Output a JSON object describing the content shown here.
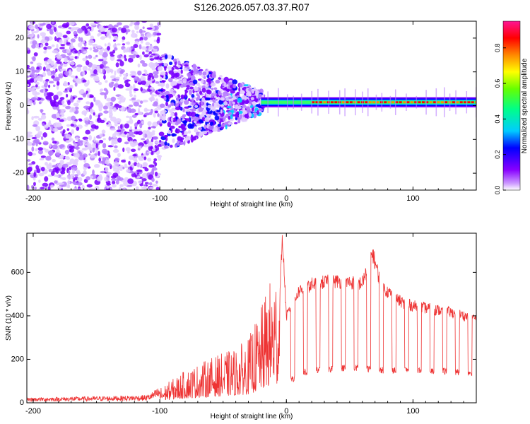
{
  "chart_data": [
    {
      "type": "heatmap",
      "title": "S126.2026.057.03.37.R07",
      "xlabel": "Height of straight line (km)",
      "ylabel": "Frequency (Hz)",
      "xlim": [
        -205,
        150
      ],
      "ylim": [
        -25,
        25
      ],
      "x_ticks": [
        -200,
        -100,
        0,
        100
      ],
      "x_tick_labels": [
        "-200",
        "-100",
        "0",
        "100"
      ],
      "y_ticks": [
        -20,
        -10,
        0,
        10,
        20
      ],
      "y_tick_labels": [
        "-20",
        "-10",
        "0",
        "10",
        "20"
      ],
      "colorbar": {
        "label": "Normalized spectral amplitude",
        "range": [
          0,
          0.95
        ],
        "ticks": [
          0.0,
          0.2,
          0.4,
          0.6,
          0.8
        ],
        "tick_labels": [
          "0.0",
          "0.2",
          "0.4",
          "0.6",
          "0.8"
        ],
        "colormap": [
          "#ffffff",
          "#cc99ff",
          "#8800ff",
          "#0000ff",
          "#00ccff",
          "#00ff88",
          "#66ff00",
          "#ffff00",
          "#ff8800",
          "#ff0000",
          "#ff1493"
        ]
      },
      "features": [
        {
          "name": "scattered noise",
          "x_range": [
            -205,
            -100
          ],
          "freq_range": [
            -25,
            25
          ],
          "amplitude": 0.1
        },
        {
          "name": "converging region",
          "x_range": [
            -100,
            -20
          ],
          "freq_range": [
            -10,
            12
          ],
          "amplitude": 0.2
        },
        {
          "name": "carrier line",
          "x_range": [
            -20,
            150
          ],
          "freq_center": 1,
          "amplitude": 0.85
        }
      ]
    },
    {
      "type": "line",
      "title": "",
      "xlabel": "Height of straight line (km)",
      "ylabel": "SNR (10 * v/v)",
      "xlim": [
        -205,
        150
      ],
      "ylim": [
        0,
        780
      ],
      "x_ticks": [
        -200,
        -100,
        0,
        100
      ],
      "x_tick_labels": [
        "-200",
        "-100",
        "0",
        "100"
      ],
      "y_ticks": [
        0,
        200,
        400,
        600
      ],
      "y_tick_labels": [
        "0",
        "200",
        "400",
        "600"
      ],
      "color": "#ee3333",
      "series": [
        {
          "name": "SNR envelope",
          "x": [
            -205,
            -150,
            -110,
            -100,
            -80,
            -60,
            -40,
            -30,
            -20,
            -15,
            -10,
            -5,
            -3,
            0,
            10,
            20,
            30,
            40,
            50,
            60,
            68,
            75,
            90,
            100,
            110,
            120,
            130,
            150
          ],
          "values": [
            20,
            25,
            30,
            60,
            130,
            180,
            220,
            260,
            380,
            470,
            520,
            560,
            760,
            400,
            520,
            550,
            560,
            565,
            560,
            555,
            700,
            540,
            470,
            450,
            440,
            430,
            420,
            390
          ]
        },
        {
          "name": "SNR dropouts",
          "x": [
            5,
            15,
            25,
            35,
            45,
            55,
            65,
            75,
            85,
            95,
            105,
            115,
            125,
            135,
            145
          ],
          "values": [
            110,
            140,
            150,
            155,
            160,
            160,
            155,
            150,
            150,
            150,
            150,
            145,
            145,
            140,
            140
          ]
        }
      ]
    }
  ]
}
